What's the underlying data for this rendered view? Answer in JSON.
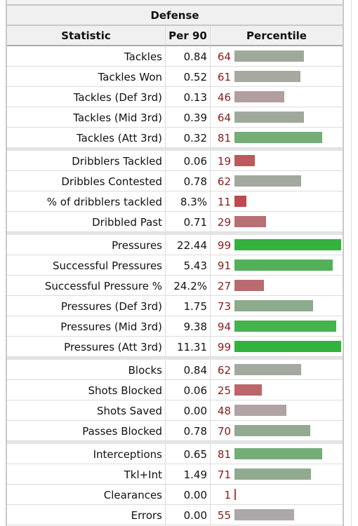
{
  "table": {
    "title": "Defense",
    "columns": [
      "Statistic",
      "Per 90",
      "Percentile"
    ],
    "groups": [
      [
        {
          "stat": "Tackles",
          "per90": "0.84",
          "percentile": 64
        },
        {
          "stat": "Tackles Won",
          "per90": "0.52",
          "percentile": 61
        },
        {
          "stat": "Tackles (Def 3rd)",
          "per90": "0.13",
          "percentile": 46
        },
        {
          "stat": "Tackles (Mid 3rd)",
          "per90": "0.39",
          "percentile": 64
        },
        {
          "stat": "Tackles (Att 3rd)",
          "per90": "0.32",
          "percentile": 81
        }
      ],
      [
        {
          "stat": "Dribblers Tackled",
          "per90": "0.06",
          "percentile": 19
        },
        {
          "stat": "Dribbles Contested",
          "per90": "0.78",
          "percentile": 62
        },
        {
          "stat": "% of dribblers tackled",
          "per90": "8.3%",
          "percentile": 11
        },
        {
          "stat": "Dribbled Past",
          "per90": "0.71",
          "percentile": 29
        }
      ],
      [
        {
          "stat": "Pressures",
          "per90": "22.44",
          "percentile": 99
        },
        {
          "stat": "Successful Pressures",
          "per90": "5.43",
          "percentile": 91
        },
        {
          "stat": "Successful Pressure %",
          "per90": "24.2%",
          "percentile": 27
        },
        {
          "stat": "Pressures (Def 3rd)",
          "per90": "1.75",
          "percentile": 73
        },
        {
          "stat": "Pressures (Mid 3rd)",
          "per90": "9.38",
          "percentile": 94
        },
        {
          "stat": "Pressures (Att 3rd)",
          "per90": "11.31",
          "percentile": 99
        }
      ],
      [
        {
          "stat": "Blocks",
          "per90": "0.84",
          "percentile": 62
        },
        {
          "stat": "Shots Blocked",
          "per90": "0.06",
          "percentile": 25
        },
        {
          "stat": "Shots Saved",
          "per90": "0.00",
          "percentile": 48
        },
        {
          "stat": "Passes Blocked",
          "per90": "0.78",
          "percentile": 70
        }
      ],
      [
        {
          "stat": "Interceptions",
          "per90": "0.65",
          "percentile": 81
        },
        {
          "stat": "Tkl+Int",
          "per90": "1.49",
          "percentile": 71
        },
        {
          "stat": "Clearances",
          "per90": "0.00",
          "percentile": 1
        },
        {
          "stat": "Errors",
          "per90": "0.00",
          "percentile": 55
        }
      ]
    ]
  }
}
